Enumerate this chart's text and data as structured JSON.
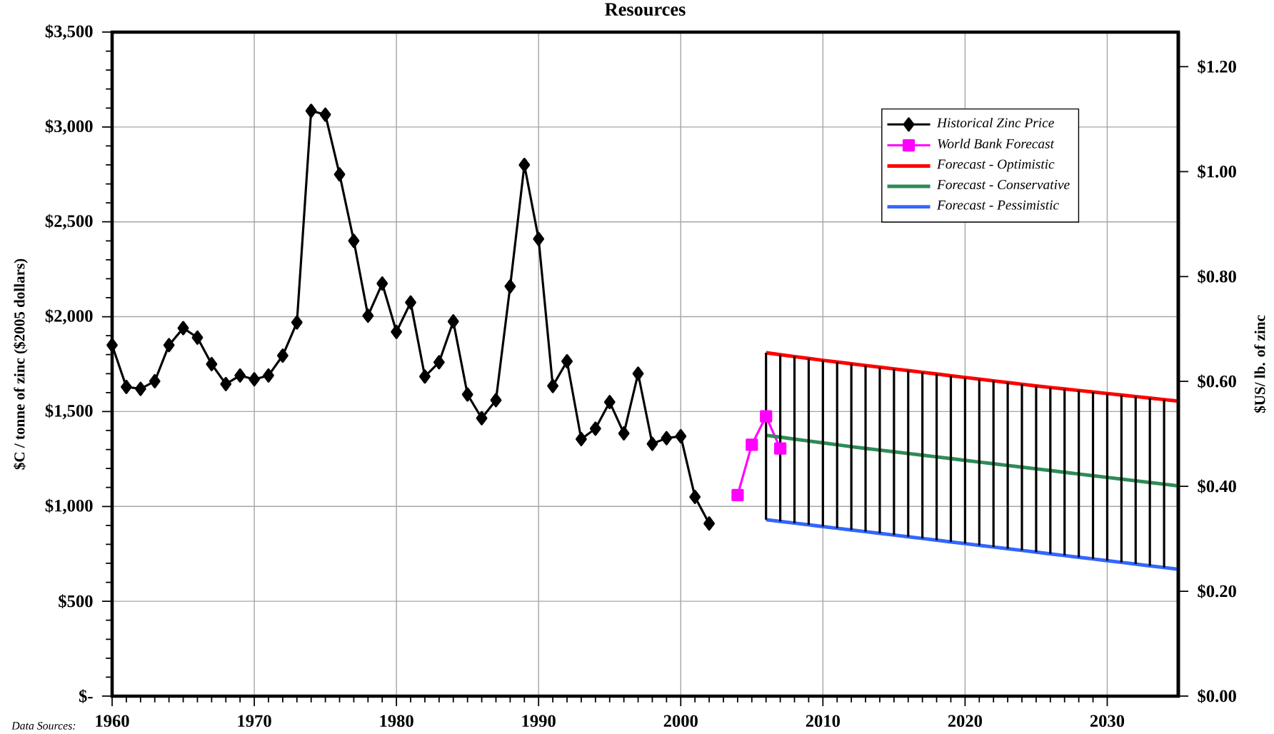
{
  "chart_data": {
    "type": "line",
    "title": "Resources",
    "ylabel": "$C / tonne of zinc ($2005 dollars)",
    "y2label": "$US/ lb. of zinc",
    "xlim": [
      1960,
      2035
    ],
    "xticks": [
      1960,
      1970,
      1980,
      1990,
      2000,
      2010,
      2020,
      2030
    ],
    "ylim": [
      0,
      3500
    ],
    "yticks": [
      {
        "value": 0,
        "label": "$-"
      },
      {
        "value": 500,
        "label": "$500"
      },
      {
        "value": 1000,
        "label": "$1,000"
      },
      {
        "value": 1500,
        "label": "$1,500"
      },
      {
        "value": 2000,
        "label": "$2,000"
      },
      {
        "value": 2500,
        "label": "$2,500"
      },
      {
        "value": 3000,
        "label": "$3,000"
      },
      {
        "value": 3500,
        "label": "$3,500"
      }
    ],
    "y2lim": [
      0,
      1.266
    ],
    "y2ticks": [
      {
        "value": 0,
        "label": "$0.00"
      },
      {
        "value": 0.2,
        "label": "$0.20"
      },
      {
        "value": 0.4,
        "label": "$0.40"
      },
      {
        "value": 0.6,
        "label": "$0.60"
      },
      {
        "value": 0.8,
        "label": "$0.80"
      },
      {
        "value": 1.0,
        "label": "$1.00"
      },
      {
        "value": 1.2,
        "label": "$1.20"
      }
    ],
    "grid": true,
    "legend": "top right",
    "annotations": [
      "Data Sources:"
    ],
    "series": [
      {
        "name": "Historical Zinc Price",
        "color": "#000000",
        "marker": "diamond",
        "x": [
          1960,
          1961,
          1962,
          1963,
          1964,
          1965,
          1966,
          1967,
          1968,
          1969,
          1970,
          1971,
          1972,
          1973,
          1974,
          1975,
          1976,
          1977,
          1978,
          1979,
          1980,
          1981,
          1982,
          1983,
          1984,
          1985,
          1986,
          1987,
          1988,
          1989,
          1990,
          1991,
          1992,
          1993,
          1994,
          1995,
          1996,
          1997,
          1998,
          1999,
          2000,
          2001,
          2002
        ],
        "values": [
          1850,
          1630,
          1620,
          1660,
          1850,
          1940,
          1890,
          1750,
          1645,
          1690,
          1670,
          1690,
          1795,
          1970,
          3085,
          3065,
          2750,
          2400,
          2005,
          2175,
          1920,
          2075,
          1685,
          1760,
          1975,
          1590,
          1465,
          1560,
          2160,
          2800,
          2410,
          1635,
          1765,
          1355,
          1410,
          1550,
          1385,
          1700,
          1330,
          1360,
          1370,
          1050,
          910
        ]
      },
      {
        "name": "World Bank Forecast",
        "color": "#ff00ff",
        "marker": "square",
        "x": [
          2004,
          2005,
          2006,
          2007
        ],
        "values": [
          1060,
          1325,
          1475,
          1305
        ]
      },
      {
        "name": "Forecast - Optimistic",
        "color": "#ff0000",
        "marker": "none",
        "x": [
          2006,
          2007,
          2008,
          2009,
          2010,
          2011,
          2012,
          2013,
          2014,
          2015,
          2016,
          2017,
          2018,
          2019,
          2020,
          2021,
          2022,
          2023,
          2024,
          2025,
          2026,
          2027,
          2028,
          2029,
          2030,
          2031,
          2032,
          2033,
          2034,
          2035
        ],
        "values": [
          1810,
          1800,
          1790,
          1780,
          1770,
          1761,
          1752,
          1743,
          1734,
          1725,
          1716,
          1707,
          1698,
          1689,
          1680,
          1671,
          1662,
          1653,
          1644,
          1635,
          1627,
          1619,
          1611,
          1603,
          1595,
          1587,
          1579,
          1571,
          1563,
          1555
        ]
      },
      {
        "name": "Forecast - Conservative",
        "color": "#2e8b57",
        "marker": "none",
        "x": [
          2006,
          2007,
          2008,
          2009,
          2010,
          2011,
          2012,
          2013,
          2014,
          2015,
          2016,
          2017,
          2018,
          2019,
          2020,
          2021,
          2022,
          2023,
          2024,
          2025,
          2026,
          2027,
          2028,
          2029,
          2030,
          2031,
          2032,
          2033,
          2034,
          2035
        ],
        "values": [
          1375,
          1365,
          1355,
          1345,
          1335,
          1325,
          1315,
          1306,
          1297,
          1288,
          1279,
          1270,
          1261,
          1252,
          1243,
          1234,
          1225,
          1216,
          1207,
          1198,
          1189,
          1180,
          1171,
          1162,
          1153,
          1144,
          1135,
          1126,
          1117,
          1108
        ]
      },
      {
        "name": "Forecast - Pessimistic",
        "color": "#3366ff",
        "marker": "none",
        "x": [
          2006,
          2007,
          2008,
          2009,
          2010,
          2011,
          2012,
          2013,
          2014,
          2015,
          2016,
          2017,
          2018,
          2019,
          2020,
          2021,
          2022,
          2023,
          2024,
          2025,
          2026,
          2027,
          2028,
          2029,
          2030,
          2031,
          2032,
          2033,
          2034,
          2035
        ],
        "values": [
          930,
          921,
          912,
          903,
          894,
          885,
          876,
          867,
          858,
          849,
          840,
          831,
          822,
          813,
          804,
          795,
          786,
          777,
          768,
          759,
          750,
          741,
          732,
          723,
          714,
          705,
          696,
          687,
          678,
          669
        ]
      },
      {
        "type": "bar",
        "color": "#000000",
        "x": [
          2006,
          2007,
          2008,
          2009,
          2010,
          2011,
          2012,
          2013,
          2014,
          2015,
          2016,
          2017,
          2018,
          2019,
          2020,
          2021,
          2022,
          2023,
          2024,
          2025,
          2026,
          2027,
          2028,
          2029,
          2030,
          2031,
          2032,
          2033,
          2034
        ],
        "base": [
          930,
          921,
          912,
          903,
          894,
          885,
          876,
          867,
          858,
          849,
          840,
          831,
          822,
          813,
          804,
          795,
          786,
          777,
          768,
          759,
          750,
          741,
          732,
          723,
          714,
          705,
          696,
          687,
          678
        ],
        "values": [
          880,
          879,
          878,
          877,
          876,
          876,
          876,
          876,
          876,
          876,
          876,
          876,
          876,
          876,
          876,
          876,
          876,
          876,
          876,
          876,
          877,
          878,
          879,
          880,
          881,
          882,
          883,
          884,
          885
        ]
      }
    ]
  }
}
